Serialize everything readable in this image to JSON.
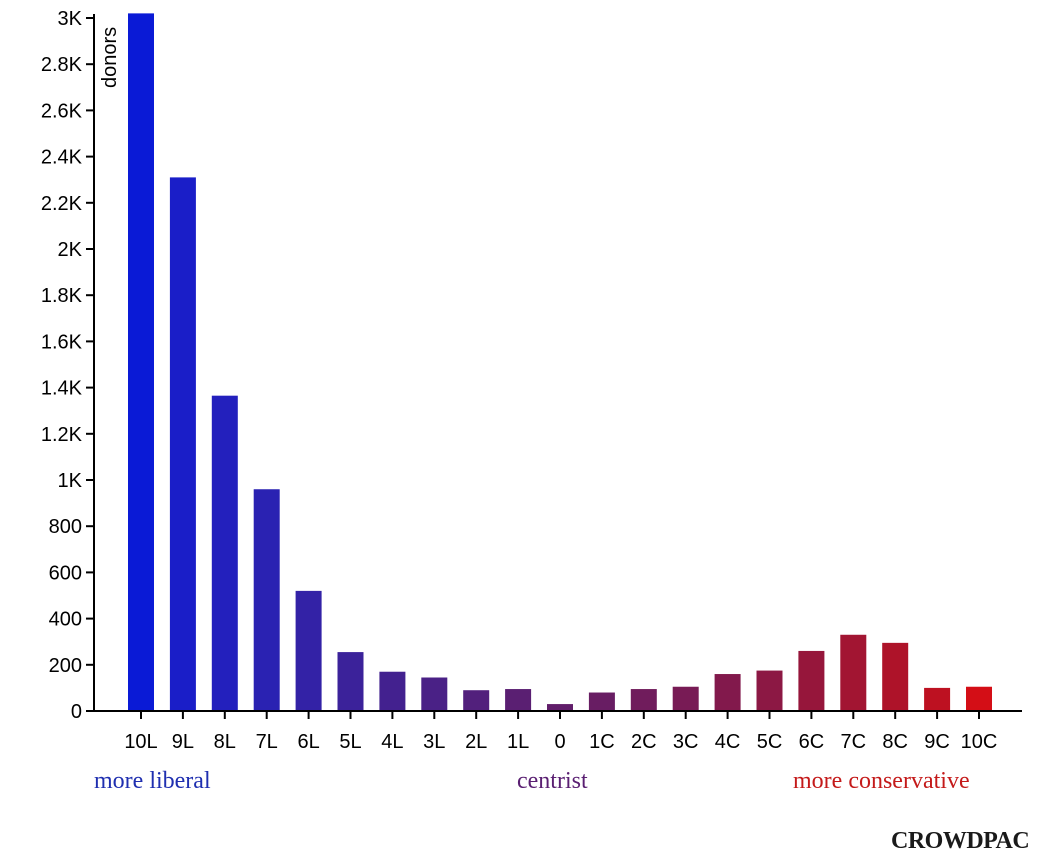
{
  "chart_data": {
    "type": "bar",
    "categories": [
      "10L",
      "9L",
      "8L",
      "7L",
      "6L",
      "5L",
      "4L",
      "3L",
      "2L",
      "1L",
      "0",
      "1C",
      "2C",
      "3C",
      "4C",
      "5C",
      "6C",
      "7C",
      "8C",
      "9C",
      "10C"
    ],
    "values": [
      3020,
      2310,
      1365,
      960,
      520,
      255,
      170,
      145,
      90,
      95,
      30,
      80,
      95,
      105,
      160,
      175,
      260,
      330,
      295,
      100,
      105
    ],
    "bar_colors": [
      "#0a1ad6",
      "#1a1ec8",
      "#2320bd",
      "#2a22b2",
      "#3322a6",
      "#3b229a",
      "#43218f",
      "#4a2186",
      "#52207c",
      "#5a1f72",
      "#611e6a",
      "#681d63",
      "#701c5c",
      "#781b55",
      "#82194c",
      "#8c1844",
      "#96163b",
      "#a21532",
      "#ae1329",
      "#bd1121",
      "#d40e16"
    ],
    "ylabel": "donors",
    "ylim": [
      0,
      3000
    ],
    "y_ticks": [
      "0",
      "200",
      "400",
      "600",
      "800",
      "1K",
      "1.2K",
      "1.4K",
      "1.6K",
      "1.8K",
      "2K",
      "2.2K",
      "2.4K",
      "2.6K",
      "2.8K",
      "3K"
    ],
    "y_tick_values": [
      0,
      200,
      400,
      600,
      800,
      1000,
      1200,
      1400,
      1600,
      1800,
      2000,
      2200,
      2400,
      2600,
      2800,
      3000
    ],
    "grid": false
  },
  "labels": {
    "liberal": "more liberal",
    "centrist": "centrist",
    "conservative": "more conservative",
    "brand": "CROWDPAC"
  },
  "colors": {
    "liberal": "#1f2fb0",
    "centrist": "#5a1f72",
    "conservative": "#c41a1a"
  }
}
